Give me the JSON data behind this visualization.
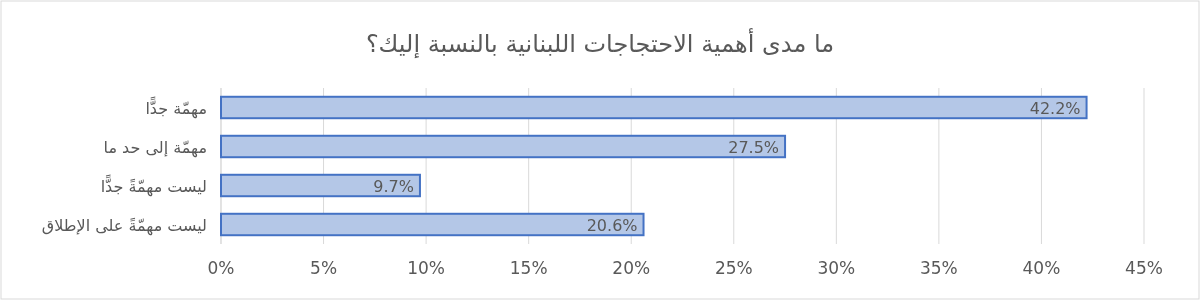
{
  "chart_data": {
    "type": "bar",
    "orientation": "horizontal",
    "title": "ما مدى أهمية الاحتجاجات اللبنانية بالنسبة إليك؟",
    "categories": [
      "مهمّة جدًّا",
      "مهمّة إلى حد ما",
      "ليست مهمّةً جدًّا",
      "ليست مهمّةً على الإطلاق"
    ],
    "values": [
      42.2,
      27.5,
      9.7,
      20.6
    ],
    "value_labels": [
      "42.2%",
      "27.5%",
      "9.7%",
      "20.6%"
    ],
    "color": "#b4c7e7",
    "xlim": [
      0,
      45
    ],
    "xticks": [
      {
        "value": 0,
        "label": "0%"
      },
      {
        "value": 5,
        "label": "5%"
      },
      {
        "value": 10,
        "label": "10%"
      },
      {
        "value": 15,
        "label": "15%"
      },
      {
        "value": 20,
        "label": "20%"
      },
      {
        "value": 25,
        "label": "25%"
      },
      {
        "value": 30,
        "label": "30%"
      },
      {
        "value": 35,
        "label": "35%"
      },
      {
        "value": 40,
        "label": "40%"
      },
      {
        "value": 45,
        "label": "45%"
      }
    ],
    "grid": "x"
  }
}
